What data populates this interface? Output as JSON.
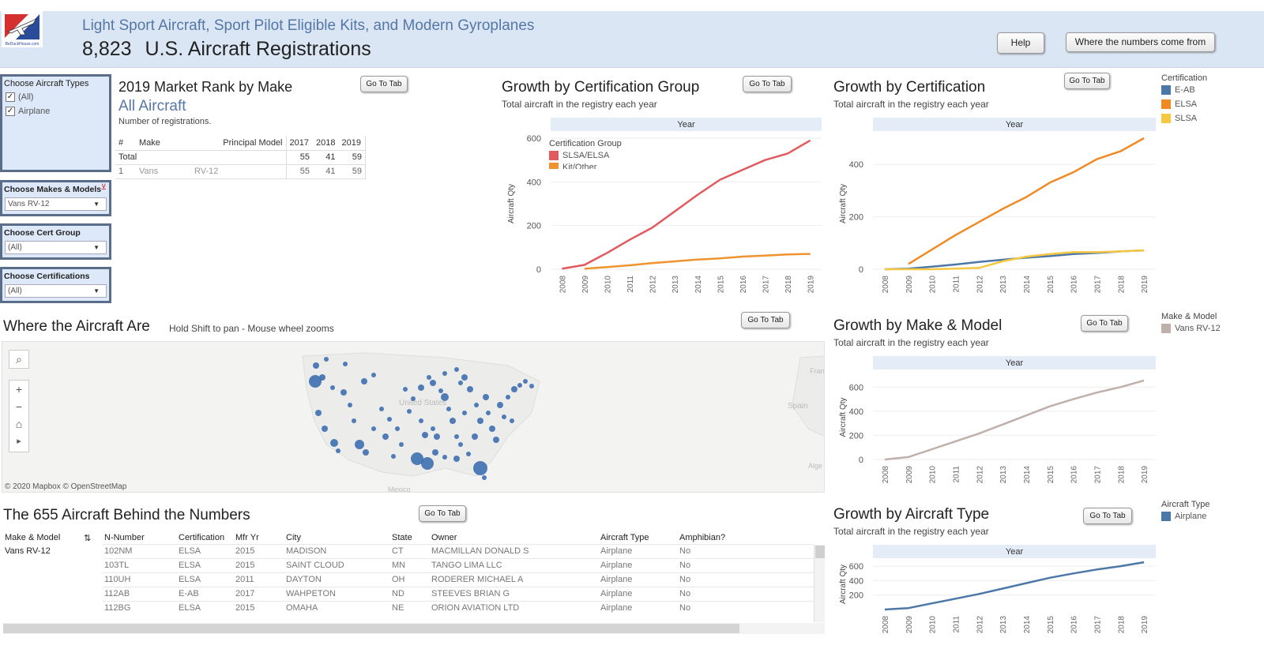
{
  "header": {
    "subtitle": "Light Sport Aircraft, Sport Pilot Eligible Kits, and Modern Gyroplanes",
    "total_count": "8,823",
    "title": "U.S. Aircraft Registrations",
    "help_label": "Help",
    "numbers_label": "Where the numbers come from",
    "logo_text": "BeDuckHouse.com"
  },
  "filters": {
    "aircraft_types": {
      "title": "Choose Aircraft Types",
      "options": [
        "(All)",
        "Airplane"
      ]
    },
    "makes_models": {
      "title": "Choose Makes & Models",
      "value": "Vans RV-12"
    },
    "cert_group": {
      "title": "Choose Cert Group",
      "value": "(All)"
    },
    "certifications": {
      "title": "Choose Certifications",
      "value": "(All)"
    }
  },
  "market_rank": {
    "title": "2019  Market Rank by Make",
    "scope": "All Aircraft",
    "note": "Number of registrations.",
    "go_label": "Go To Tab",
    "headers": [
      "#",
      "Make",
      "Principal Model",
      "2017",
      "2018",
      "2019"
    ],
    "total_row": [
      "Total",
      "",
      "",
      "55",
      "41",
      "59"
    ],
    "rows": [
      [
        "1",
        "Vans",
        "RV-12",
        "55",
        "41",
        "59"
      ]
    ]
  },
  "growth_group": {
    "title": "Growth by Certification Group",
    "sub": "Total aircraft in the registry each year",
    "go_label": "Go To Tab",
    "band": "Year",
    "ylabel": "Aircraft Qty",
    "legend_title": "Certification Group",
    "legend": [
      "SLSA/ELSA",
      "Kit/Other"
    ]
  },
  "growth_cert": {
    "title": "Growth by Certification",
    "sub": "Total aircraft in the registry each year",
    "go_label": "Go To Tab",
    "band": "Year",
    "ylabel": "Aircraft Qty",
    "legend_title": "Certification",
    "legend": [
      "E-AB",
      "ELSA",
      "SLSA"
    ]
  },
  "growth_make": {
    "title": "Growth by Make & Model",
    "sub": "Total aircraft in the registry each year",
    "go_label": "Go To Tab",
    "band": "Year",
    "ylabel": "Aircraft Qty",
    "legend_title": "Make & Model",
    "legend": [
      "Vans RV-12"
    ]
  },
  "growth_type": {
    "title": "Growth by Aircraft Type",
    "sub": "Total aircraft in the registry each year",
    "go_label": "Go To Tab",
    "band": "Year",
    "ylabel": "Aircraft Qty",
    "legend_title": "Aircraft Type",
    "legend": [
      "Airplane"
    ]
  },
  "map": {
    "title": "Where the Aircraft Are",
    "hint": "Hold Shift to pan - Mouse wheel zooms",
    "go_label": "Go To Tab",
    "attribution": "© 2020 Mapbox  © OpenStreetMap",
    "labels": {
      "states": "United States",
      "mexico": "Mexico",
      "spain": "Spain",
      "france": "Fran",
      "algeria": "Alge"
    },
    "tools": {
      "search": "⌕",
      "plus": "+",
      "minus": "−",
      "home": "⌂",
      "play": "▸"
    }
  },
  "aircraft_list": {
    "title": "The 655 Aircraft Behind the Numbers",
    "go_label": "Go To Tab",
    "headers": [
      "Make & Model",
      "N-Number",
      "Certification",
      "Mfr Yr",
      "City",
      "State",
      "Owner",
      "Aircraft Type",
      "Amphibian?"
    ],
    "group": "Vans RV-12",
    "rows": [
      [
        "102NM",
        "ELSA",
        "2015",
        "MADISON",
        "CT",
        "MACMILLAN DONALD S",
        "Airplane",
        "No"
      ],
      [
        "103TL",
        "ELSA",
        "2015",
        "SAINT CLOUD",
        "MN",
        "TANGO LIMA LLC",
        "Airplane",
        "No"
      ],
      [
        "110UH",
        "ELSA",
        "2011",
        "DAYTON",
        "OH",
        "RODERER MICHAEL A",
        "Airplane",
        "No"
      ],
      [
        "112AB",
        "E-AB",
        "2017",
        "WAHPETON",
        "ND",
        "STEEVES BRIAN G",
        "Airplane",
        "No"
      ],
      [
        "112BG",
        "ELSA",
        "2015",
        "OMAHA",
        "NE",
        "ORION AVIATION LTD",
        "Airplane",
        "No"
      ]
    ]
  },
  "colors": {
    "slsa_elsa": "#e05a5e",
    "kit_other": "#f0932f",
    "e_ab": "#4c78a8",
    "elsa": "#f08a24",
    "slsa": "#f5c842",
    "vans": "#bfb0ac",
    "airplane": "#4c78a8",
    "accent": "#5577a6"
  },
  "chart_data": [
    {
      "type": "line",
      "title": "Growth by Certification Group",
      "xlabel": "Year",
      "ylabel": "Aircraft Qty",
      "categories": [
        "2008",
        "2009",
        "2010",
        "2011",
        "2012",
        "2013",
        "2014",
        "2015",
        "2016",
        "2017",
        "2018",
        "2019"
      ],
      "ylim": [
        0,
        600
      ],
      "yticks": [
        0,
        200,
        400,
        600
      ],
      "series": [
        {
          "name": "SLSA/ELSA",
          "color": "#e05a5e",
          "values": [
            2,
            20,
            75,
            135,
            190,
            265,
            340,
            410,
            455,
            500,
            530,
            590
          ]
        },
        {
          "name": "Kit/Other",
          "color": "#f0932f",
          "values": [
            null,
            2,
            10,
            18,
            28,
            36,
            44,
            50,
            58,
            62,
            68,
            70
          ]
        }
      ]
    },
    {
      "type": "line",
      "title": "Growth by Certification",
      "xlabel": "Year",
      "ylabel": "Aircraft Qty",
      "categories": [
        "2008",
        "2009",
        "2010",
        "2011",
        "2012",
        "2013",
        "2014",
        "2015",
        "2016",
        "2017",
        "2018",
        "2019"
      ],
      "ylim": [
        0,
        500
      ],
      "yticks": [
        0,
        200,
        400
      ],
      "series": [
        {
          "name": "E-AB",
          "color": "#4c78a8",
          "values": [
            0,
            2,
            10,
            18,
            28,
            36,
            44,
            50,
            58,
            62,
            68,
            72
          ]
        },
        {
          "name": "ELSA",
          "color": "#f08a24",
          "values": [
            null,
            20,
            75,
            130,
            180,
            230,
            275,
            330,
            370,
            420,
            450,
            500
          ]
        },
        {
          "name": "SLSA",
          "color": "#f5c842",
          "values": [
            0,
            0,
            0,
            2,
            5,
            30,
            48,
            58,
            65,
            65,
            68,
            72
          ]
        }
      ]
    },
    {
      "type": "line",
      "title": "Growth by Make & Model",
      "xlabel": "Year",
      "ylabel": "Aircraft Qty",
      "categories": [
        "2008",
        "2009",
        "2010",
        "2011",
        "2012",
        "2013",
        "2014",
        "2015",
        "2016",
        "2017",
        "2018",
        "2019"
      ],
      "ylim": [
        0,
        700
      ],
      "yticks": [
        0,
        200,
        400,
        600
      ],
      "series": [
        {
          "name": "Vans RV-12",
          "color": "#bfb0ac",
          "values": [
            0,
            20,
            85,
            150,
            215,
            290,
            365,
            440,
            500,
            555,
            600,
            655
          ]
        }
      ]
    },
    {
      "type": "line",
      "title": "Growth by Aircraft Type",
      "xlabel": "Year",
      "ylabel": "Aircraft Qty",
      "categories": [
        "2008",
        "2009",
        "2010",
        "2011",
        "2012",
        "2013",
        "2014",
        "2015",
        "2016",
        "2017",
        "2018",
        "2019"
      ],
      "ylim": [
        0,
        700
      ],
      "yticks": [
        200,
        400,
        600
      ],
      "series": [
        {
          "name": "Airplane",
          "color": "#4c78a8",
          "values": [
            0,
            20,
            85,
            150,
            215,
            290,
            365,
            440,
            500,
            555,
            600,
            655
          ]
        }
      ]
    }
  ]
}
